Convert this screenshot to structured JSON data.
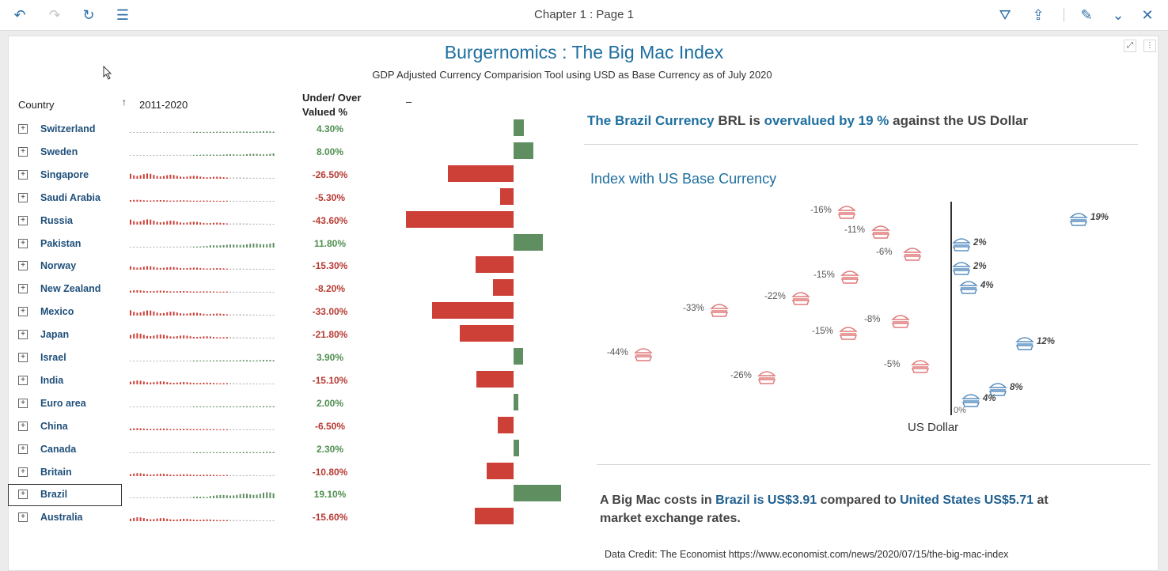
{
  "toolbar": {
    "page_title": "Chapter 1 : Page 1",
    "undo_icon": "↶",
    "redo_icon": "↷",
    "refresh_icon": "↻",
    "outline_icon": "☰",
    "filter_icon": "⛛",
    "share_icon": "⇪",
    "edit_icon": "✎",
    "collapse_icon": "⌄",
    "close_icon": "✕"
  },
  "canvas": {
    "expand_icon": "⤢",
    "more_icon": "⋮"
  },
  "header": {
    "title": "Burgernomics : The Big Mac Index",
    "subtitle": "GDP Adjusted Currency Comparision Tool using USD as Base Currency as of July 2020"
  },
  "table": {
    "col_country": "Country",
    "sort_arrow": "↑",
    "col_trend": "2011-2020",
    "col_valued_1": "Under/ Over",
    "col_valued_2": "Valued %",
    "col_dash": "–",
    "expand_glyph": "+",
    "rows": [
      {
        "country": "Switzerland",
        "pct": "4.30%",
        "value": 4.3
      },
      {
        "country": "Sweden",
        "pct": "8.00%",
        "value": 8.0
      },
      {
        "country": "Singapore",
        "pct": "-26.50%",
        "value": -26.5
      },
      {
        "country": "Saudi Arabia",
        "pct": "-5.30%",
        "value": -5.3
      },
      {
        "country": "Russia",
        "pct": "-43.60%",
        "value": -43.6
      },
      {
        "country": "Pakistan",
        "pct": "11.80%",
        "value": 11.8
      },
      {
        "country": "Norway",
        "pct": "-15.30%",
        "value": -15.3
      },
      {
        "country": "New Zealand",
        "pct": "-8.20%",
        "value": -8.2
      },
      {
        "country": "Mexico",
        "pct": "-33.00%",
        "value": -33.0
      },
      {
        "country": "Japan",
        "pct": "-21.80%",
        "value": -21.8
      },
      {
        "country": "Israel",
        "pct": "3.90%",
        "value": 3.9
      },
      {
        "country": "India",
        "pct": "-15.10%",
        "value": -15.1
      },
      {
        "country": "Euro area",
        "pct": "2.00%",
        "value": 2.0
      },
      {
        "country": "China",
        "pct": "-6.50%",
        "value": -6.5
      },
      {
        "country": "Canada",
        "pct": "2.30%",
        "value": 2.3
      },
      {
        "country": "Britain",
        "pct": "-10.80%",
        "value": -10.8
      },
      {
        "country": "Brazil",
        "pct": "19.10%",
        "value": 19.1
      },
      {
        "country": "Australia",
        "pct": "-15.60%",
        "value": -15.6
      }
    ]
  },
  "statement": {
    "part1": "The Brazil Currency",
    "part2": " BRL  is  ",
    "part3": "overvalued by 19 %",
    "part4": " against the US Dollar"
  },
  "index_chart": {
    "title": "Index with US Base Currency",
    "axis_label": "US Dollar",
    "zero_label": "0%",
    "labels": [
      "-16%",
      "-11%",
      "-6%",
      "-15%",
      "-22%",
      "-33%",
      "-8%",
      "-15%",
      "-44%",
      "-5%",
      "-26%",
      "2%",
      "2%",
      "4%",
      "19%",
      "12%",
      "8%",
      "4%"
    ]
  },
  "cost": {
    "p1": "A Big Mac costs in ",
    "p2": "Brazil",
    "p3": " is US$3.91",
    "p4": " compared to ",
    "p5": "United States US$5.71",
    "p6": " at market exchange rates."
  },
  "credit": "Data Credit: The Economist https://www.economist.com/news/2020/07/15/the-big-mac-index",
  "colors": {
    "accent": "#1f6fa0",
    "positive": "#5f8f60",
    "negative": "#cc4038",
    "burger_neg": "#e07a7a",
    "burger_pos": "#5a8fc0"
  },
  "chart_data": {
    "type": "bar",
    "title": "Under/ Over Valued %",
    "categories": [
      "Switzerland",
      "Sweden",
      "Singapore",
      "Saudi Arabia",
      "Russia",
      "Pakistan",
      "Norway",
      "New Zealand",
      "Mexico",
      "Japan",
      "Israel",
      "India",
      "Euro area",
      "China",
      "Canada",
      "Britain",
      "Brazil",
      "Australia"
    ],
    "values": [
      4.3,
      8.0,
      -26.5,
      -5.3,
      -43.6,
      11.8,
      -15.3,
      -8.2,
      -33.0,
      -21.8,
      3.9,
      -15.1,
      2.0,
      -6.5,
      2.3,
      -10.8,
      19.1,
      -15.6
    ],
    "orientation": "horizontal",
    "ylim": [
      -45,
      20
    ]
  }
}
